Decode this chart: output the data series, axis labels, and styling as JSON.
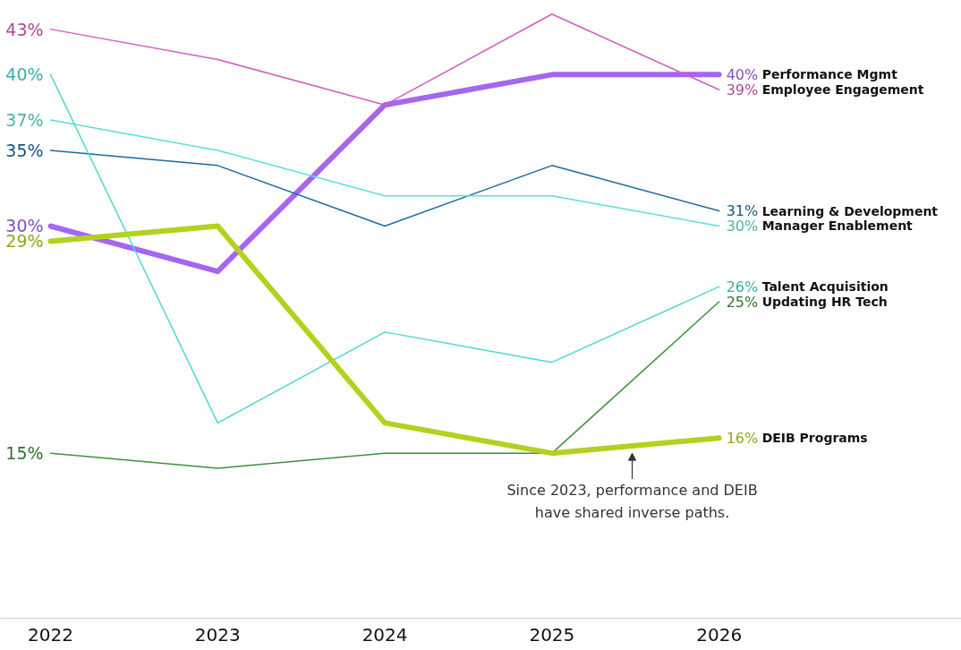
{
  "chart_data": {
    "type": "line",
    "x": [
      2022,
      2023,
      2024,
      2025,
      2026
    ],
    "xlim": [
      2021.7,
      2027.45
    ],
    "xticks": [
      2022,
      2023,
      2024,
      2025,
      2026
    ],
    "tick_labels": "x",
    "grid": false,
    "marker": "none",
    "series": [
      {
        "name": "Performance Mgmt",
        "color": "#a566f0",
        "values": [
          30,
          27,
          38,
          40,
          40
        ],
        "value_labels": [
          "30%",
          null,
          null,
          null,
          "40%"
        ]
      },
      {
        "name": "Employee Engagement",
        "color": "#d65cc0",
        "values": [
          43,
          41,
          38,
          44,
          39
        ],
        "value_labels": [
          "43%",
          null,
          null,
          null,
          "39%"
        ]
      },
      {
        "name": "Learning & Development",
        "color": "#1c6aa0",
        "values": [
          35,
          34,
          30,
          34,
          31
        ],
        "value_labels": [
          "35%",
          null,
          null,
          null,
          "31%"
        ]
      },
      {
        "name": "Manager Enablement",
        "color": "#5fded6",
        "values": [
          37,
          35,
          32,
          32,
          30
        ],
        "value_labels": [
          "37%",
          null,
          null,
          null,
          "30%"
        ]
      },
      {
        "name": "Talent Acquisition",
        "color": "#4fd8cc",
        "values": [
          40,
          17,
          23,
          21,
          26
        ],
        "value_labels": [
          "40%",
          null,
          null,
          null,
          "26%"
        ]
      },
      {
        "name": "Updating HR Tech",
        "color": "#3f8f3a",
        "values": [
          15,
          14,
          15,
          15,
          25
        ],
        "value_labels": [
          "15%",
          null,
          null,
          null,
          "25%"
        ]
      },
      {
        "name": "DEIB Programs",
        "color": "#b3d11e",
        "values": [
          29,
          30,
          17,
          15,
          16
        ],
        "value_labels": [
          "29%",
          null,
          null,
          null,
          "16%"
        ]
      }
    ],
    "annotations": [
      {
        "text": "Since 2023, performance and DEIB have shared inverse paths.",
        "x": 2025.48,
        "y": 15.3
      }
    ]
  }
}
